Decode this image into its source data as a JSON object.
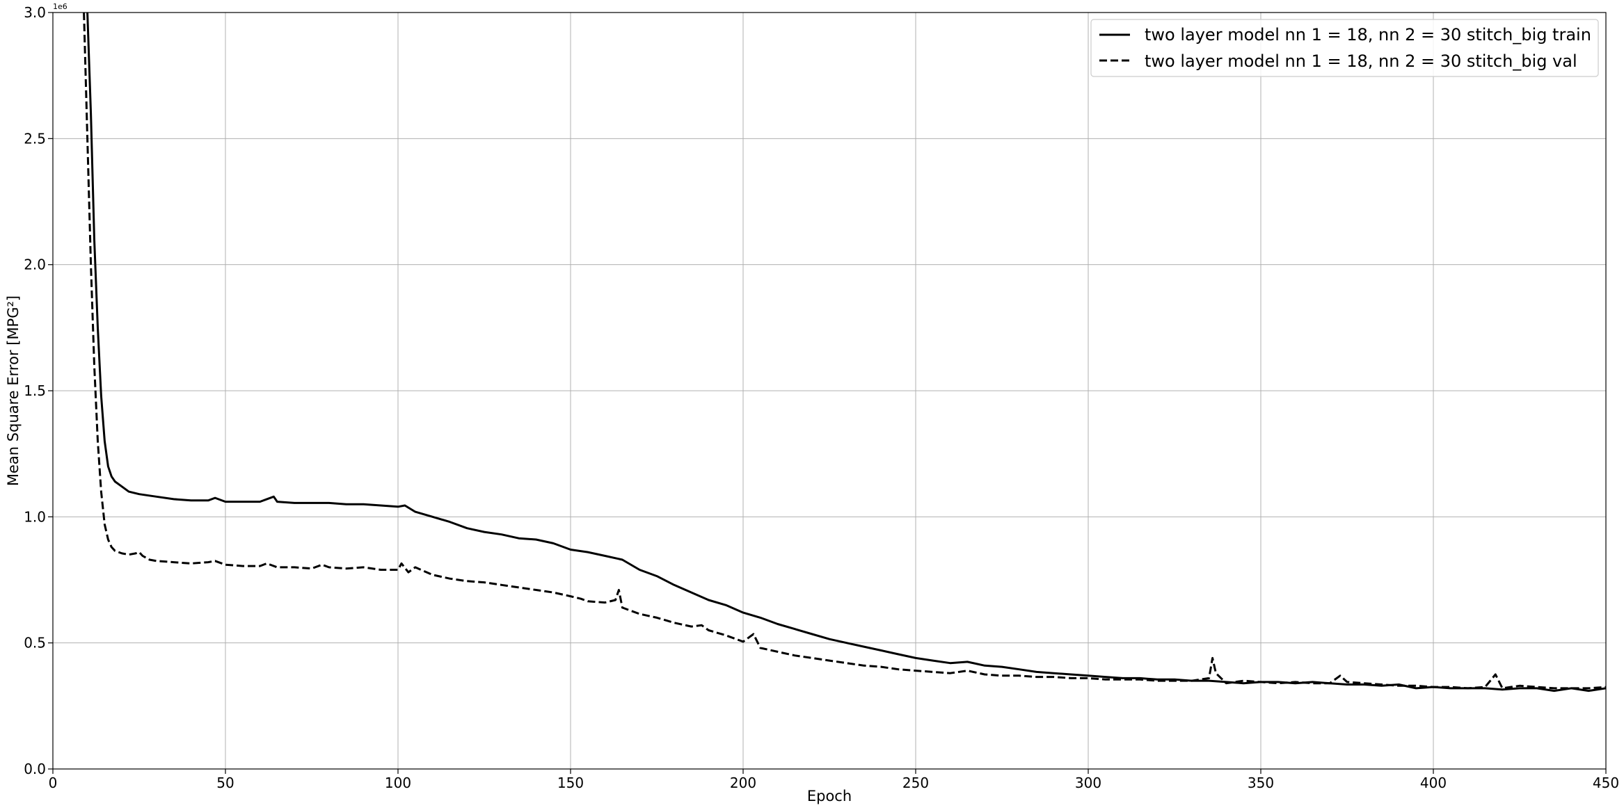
{
  "chart_data": {
    "type": "line",
    "title": "",
    "xlabel": "Epoch",
    "ylabel_text": "Mean Square Error ",
    "ylabel_unit": "[MPG²]",
    "y_offset_label": "1e6",
    "xlim": [
      0,
      450
    ],
    "ylim": [
      0,
      3.0
    ],
    "y_scale_multiplier": 1000000,
    "grid": true,
    "legend_position": "top-right",
    "x_ticks": [
      "0",
      "50",
      "100",
      "150",
      "200",
      "250",
      "300",
      "350",
      "400",
      "450"
    ],
    "x_tick_values": [
      0,
      50,
      100,
      150,
      200,
      250,
      300,
      350,
      400,
      450
    ],
    "y_ticks": [
      "0.0",
      "0.5",
      "1.0",
      "1.5",
      "2.0",
      "2.5",
      "3.0"
    ],
    "y_tick_values": [
      0,
      0.5,
      1.0,
      1.5,
      2.0,
      2.5,
      3.0
    ],
    "series": [
      {
        "name": "two layer model nn 1 = 18, nn 2 = 30 stitch_big train",
        "style": "solid",
        "color": "#000000",
        "x": [
          10,
          11,
          12,
          13,
          14,
          15,
          16,
          17,
          18,
          20,
          22,
          25,
          30,
          35,
          40,
          45,
          47,
          50,
          55,
          60,
          64,
          65,
          70,
          75,
          80,
          85,
          90,
          95,
          100,
          102,
          105,
          110,
          115,
          120,
          125,
          130,
          135,
          140,
          145,
          150,
          155,
          160,
          165,
          170,
          175,
          180,
          185,
          190,
          195,
          200,
          205,
          210,
          215,
          220,
          225,
          230,
          235,
          240,
          245,
          250,
          255,
          260,
          265,
          270,
          275,
          280,
          285,
          290,
          295,
          300,
          305,
          310,
          315,
          320,
          325,
          330,
          335,
          340,
          345,
          350,
          355,
          360,
          365,
          370,
          375,
          380,
          385,
          390,
          395,
          400,
          405,
          410,
          415,
          420,
          425,
          430,
          435,
          440,
          445,
          450
        ],
        "y": [
          3.0,
          2.6,
          2.1,
          1.75,
          1.48,
          1.3,
          1.2,
          1.16,
          1.14,
          1.12,
          1.1,
          1.09,
          1.08,
          1.07,
          1.065,
          1.065,
          1.075,
          1.06,
          1.06,
          1.06,
          1.08,
          1.06,
          1.055,
          1.055,
          1.055,
          1.05,
          1.05,
          1.045,
          1.04,
          1.045,
          1.02,
          1.0,
          0.98,
          0.955,
          0.94,
          0.93,
          0.915,
          0.91,
          0.895,
          0.87,
          0.86,
          0.845,
          0.83,
          0.79,
          0.765,
          0.73,
          0.7,
          0.67,
          0.65,
          0.62,
          0.6,
          0.575,
          0.555,
          0.535,
          0.515,
          0.5,
          0.485,
          0.47,
          0.455,
          0.44,
          0.43,
          0.42,
          0.425,
          0.41,
          0.405,
          0.395,
          0.385,
          0.38,
          0.375,
          0.37,
          0.365,
          0.36,
          0.36,
          0.355,
          0.355,
          0.35,
          0.35,
          0.345,
          0.34,
          0.345,
          0.345,
          0.34,
          0.345,
          0.34,
          0.335,
          0.335,
          0.33,
          0.335,
          0.32,
          0.325,
          0.32,
          0.32,
          0.32,
          0.315,
          0.32,
          0.32,
          0.31,
          0.32,
          0.31,
          0.32
        ]
      },
      {
        "name": "two layer model nn 1 = 18, nn 2 = 30 stitch_big val",
        "style": "dashed",
        "color": "#000000",
        "x": [
          9,
          10,
          11,
          12,
          13,
          14,
          15,
          16,
          17,
          18,
          20,
          22,
          24,
          25,
          26,
          28,
          30,
          35,
          40,
          45,
          47,
          50,
          55,
          60,
          62,
          65,
          70,
          75,
          78,
          80,
          85,
          90,
          95,
          100,
          101,
          103,
          105,
          110,
          115,
          120,
          125,
          130,
          135,
          140,
          145,
          150,
          153,
          155,
          160,
          163,
          164,
          165,
          170,
          175,
          180,
          185,
          188,
          190,
          195,
          200,
          203,
          205,
          210,
          215,
          220,
          225,
          230,
          235,
          240,
          245,
          250,
          255,
          260,
          265,
          270,
          275,
          280,
          285,
          290,
          295,
          300,
          305,
          310,
          315,
          320,
          325,
          330,
          335,
          336,
          337,
          340,
          345,
          350,
          355,
          360,
          365,
          370,
          373,
          375,
          380,
          385,
          390,
          395,
          400,
          405,
          410,
          415,
          418,
          420,
          425,
          430,
          435,
          440,
          445,
          450
        ],
        "y": [
          3.0,
          2.5,
          2.0,
          1.6,
          1.3,
          1.1,
          0.97,
          0.91,
          0.88,
          0.865,
          0.855,
          0.85,
          0.855,
          0.86,
          0.845,
          0.83,
          0.825,
          0.82,
          0.815,
          0.82,
          0.825,
          0.81,
          0.805,
          0.805,
          0.815,
          0.8,
          0.8,
          0.795,
          0.81,
          0.8,
          0.795,
          0.8,
          0.79,
          0.79,
          0.815,
          0.78,
          0.8,
          0.77,
          0.755,
          0.745,
          0.74,
          0.73,
          0.72,
          0.71,
          0.7,
          0.685,
          0.675,
          0.665,
          0.66,
          0.67,
          0.71,
          0.64,
          0.615,
          0.6,
          0.58,
          0.565,
          0.57,
          0.55,
          0.53,
          0.505,
          0.535,
          0.48,
          0.465,
          0.45,
          0.44,
          0.43,
          0.42,
          0.41,
          0.405,
          0.395,
          0.39,
          0.385,
          0.38,
          0.39,
          0.375,
          0.37,
          0.37,
          0.365,
          0.365,
          0.36,
          0.36,
          0.355,
          0.355,
          0.355,
          0.35,
          0.35,
          0.35,
          0.36,
          0.44,
          0.38,
          0.34,
          0.35,
          0.345,
          0.34,
          0.345,
          0.34,
          0.34,
          0.37,
          0.345,
          0.34,
          0.335,
          0.33,
          0.33,
          0.325,
          0.325,
          0.32,
          0.325,
          0.375,
          0.32,
          0.33,
          0.325,
          0.32,
          0.32,
          0.32,
          0.325
        ]
      }
    ]
  }
}
